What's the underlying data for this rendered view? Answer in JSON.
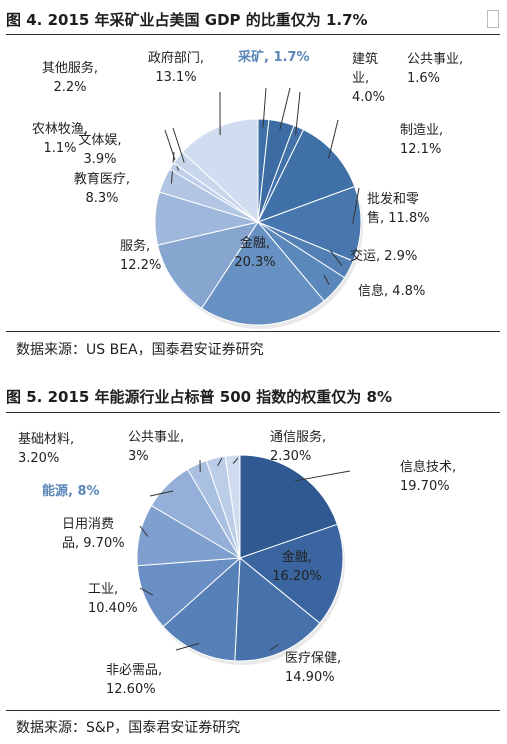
{
  "figures": [
    {
      "title": "图 4. 2015 年采矿业占美国 GDP 的比重仅为 1.7%",
      "source": "数据来源：US BEA，国泰君安证券研究"
    },
    {
      "title": "图 5. 2015 年能源行业占标普 500 指数的权重仅为 8%",
      "source": "数据来源：S&P，国泰君安证券研究"
    }
  ],
  "chart_data": [
    {
      "type": "pie",
      "title": "图 4. 2015 年采矿业占美国 GDP 的比重仅为 1.7%",
      "highlight": "采矿",
      "slices": [
        {
          "name": "采矿",
          "value": 1.7,
          "label": [
            "采矿, 1.7%"
          ],
          "color": "#3e6fa6"
        },
        {
          "name": "建筑业",
          "value": 4.0,
          "label": [
            "建筑",
            "业,",
            "4.0%"
          ],
          "color": "#3c6ca3"
        },
        {
          "name": "公共事业",
          "value": 1.6,
          "label": [
            "公共事业,",
            "1.6%"
          ],
          "color": "#4272a9"
        },
        {
          "name": "制造业",
          "value": 12.1,
          "label": [
            "制造业,",
            "12.1%"
          ],
          "color": "#3f70a8"
        },
        {
          "name": "批发和零售",
          "value": 11.8,
          "label": [
            "批发和零",
            "售, 11.8%"
          ],
          "color": "#4777ae"
        },
        {
          "name": "交运",
          "value": 2.9,
          "label": [
            "交运, 2.9%"
          ],
          "color": "#5280b5"
        },
        {
          "name": "信息",
          "value": 4.8,
          "label": [
            "信息, 4.8%"
          ],
          "color": "#5a88bb"
        },
        {
          "name": "金融",
          "value": 20.3,
          "label": [
            "金融,",
            "20.3%"
          ],
          "color": "#6791c2"
        },
        {
          "name": "服务",
          "value": 12.2,
          "label": [
            "服务,",
            "12.2%"
          ],
          "color": "#86a6d0"
        },
        {
          "name": "教育医疗",
          "value": 8.3,
          "label": [
            "教育医疗,",
            "8.3%"
          ],
          "color": "#9fb7da"
        },
        {
          "name": "文体娱",
          "value": 3.9,
          "label": [
            "文体娱,",
            "3.9%"
          ],
          "color": "#b2c5e2"
        },
        {
          "name": "农林牧渔",
          "value": 1.1,
          "label": [
            "农林牧渔,",
            "1.1%"
          ],
          "color": "#bfcfe8"
        },
        {
          "name": "其他服务",
          "value": 2.2,
          "label": [
            "其他服务,",
            "2.2%"
          ],
          "color": "#c8d6ec"
        },
        {
          "name": "政府部门",
          "value": 13.1,
          "label": [
            "政府部门,",
            "13.1%"
          ],
          "color": "#d0dcef"
        }
      ]
    },
    {
      "type": "pie",
      "title": "图 5. 2015 年能源行业占标普 500 指数的权重仅为 8%",
      "highlight": "能源",
      "slices": [
        {
          "name": "信息技术",
          "value": 19.7,
          "label": [
            "信息技术,",
            "19.70%"
          ],
          "color": "#2f5990"
        },
        {
          "name": "金融",
          "value": 16.2,
          "label": [
            "金融,",
            "16.20%"
          ],
          "color": "#3a65a0"
        },
        {
          "name": "医疗保健",
          "value": 14.9,
          "label": [
            "医疗保健,",
            "14.90%"
          ],
          "color": "#4771ab"
        },
        {
          "name": "非必需品",
          "value": 12.6,
          "label": [
            "非必需品,",
            "12.60%"
          ],
          "color": "#5880b8"
        },
        {
          "name": "工业",
          "value": 10.4,
          "label": [
            "工业,",
            "10.40%"
          ],
          "color": "#6a8fc4"
        },
        {
          "name": "日用消费品",
          "value": 9.7,
          "label": [
            "日用消费",
            "品, 9.70%"
          ],
          "color": "#7f9fce"
        },
        {
          "name": "能源",
          "value": 8.0,
          "label": [
            "能源, 8%"
          ],
          "color": "#94b0d8"
        },
        {
          "name": "基础材料",
          "value": 3.2,
          "label": [
            "基础材料,",
            "3.20%"
          ],
          "color": "#a9c0e1"
        },
        {
          "name": "公共事业",
          "value": 3.0,
          "label": [
            "公共事业,",
            "3%"
          ],
          "color": "#bccde8"
        },
        {
          "name": "通信服务",
          "value": 2.3,
          "label": [
            "通信服务,",
            "2.30%"
          ],
          "color": "#cfdcef"
        }
      ]
    }
  ]
}
